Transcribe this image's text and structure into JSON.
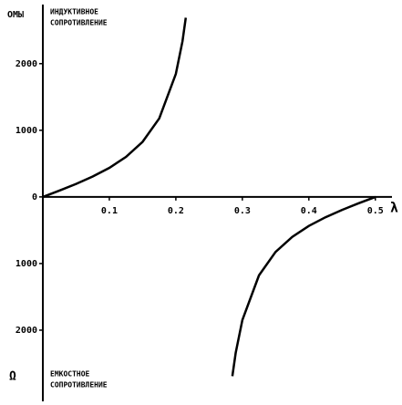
{
  "chart_data": {
    "type": "line",
    "y_label_top": "ОМЫ",
    "top_annotation": [
      "ИНДУКТИВНОЕ",
      "СОПРОТИВЛЕНИЕ"
    ],
    "y_label_bottom": "Ω",
    "bottom_annotation": [
      "ЕМКОСТНОЕ",
      "СОПРОТИВЛЕНИЕ"
    ],
    "x_label": "λ",
    "series": [
      {
        "name": "ИНДУКТИВНОЕ СОПРОТИВЛЕНИЕ",
        "color": "#000000",
        "x": [
          0,
          0.025,
          0.05,
          0.075,
          0.1,
          0.125,
          0.15,
          0.175,
          0.2,
          0.21,
          0.215
        ],
        "values": [
          0,
          95,
          195,
          306,
          436,
          600,
          826,
          1178,
          1847,
          2337,
          2690
        ]
      },
      {
        "name": "ЕМКОСТНОЕ СОПРОТИВЛЕНИЕ",
        "color": "#000000",
        "x": [
          0.285,
          0.29,
          0.3,
          0.325,
          0.35,
          0.375,
          0.4,
          0.425,
          0.45,
          0.475,
          0.5
        ],
        "values": [
          -2690,
          -2337,
          -1847,
          -1178,
          -826,
          -600,
          -436,
          -306,
          -195,
          -95,
          0
        ]
      }
    ],
    "xlim": [
      0,
      0.525
    ],
    "xticks": [
      0.1,
      0.2,
      0.3,
      0.4,
      0.5
    ],
    "ylim": [
      -3000,
      2750
    ],
    "yticks": [
      {
        "value": 2000,
        "label": "2000"
      },
      {
        "value": 1000,
        "label": "1000"
      },
      0,
      {
        "value": -1000,
        "label": "1000"
      },
      {
        "value": -2000,
        "label": "2000"
      }
    ]
  }
}
